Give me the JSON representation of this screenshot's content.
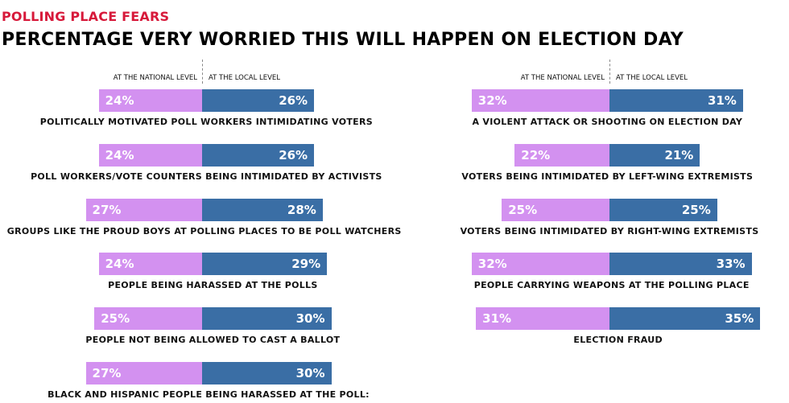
{
  "header": {
    "kicker": "POLLING PLACE FEARS",
    "title": "PERCENTAGE VERY WORRIED THIS WILL HAPPEN ON ELECTION DAY"
  },
  "chart_data": {
    "type": "bar",
    "orientation": "horizontal diverging",
    "colors": {
      "At the national level": "#d391f0",
      "At the local level": "#3a6ea5",
      "kicker": "#d7193a"
    },
    "panels": [
      {
        "header_national": "AT THE NATIONAL LEVEL",
        "header_local": "AT THE LOCAL LEVEL",
        "rows": [
          {
            "label": "POLITICALLY MOTIVATED POLL WORKERS INTIMIDATING VOTERS",
            "national": 24,
            "local": 26
          },
          {
            "label": "POLL WORKERS/VOTE COUNTERS BEING INTIMIDATED BY ACTIVISTS",
            "national": 24,
            "local": 26
          },
          {
            "label": "GROUPS LIKE THE PROUD BOYS AT POLLING PLACES TO BE POLL WATCHERS",
            "national": 27,
            "local": 28
          },
          {
            "label": "PEOPLE BEING HARASSED AT THE POLLS",
            "national": 24,
            "local": 29
          },
          {
            "label": "PEOPLE NOT BEING ALLOWED TO CAST A BALLOT",
            "national": 25,
            "local": 30
          },
          {
            "label": "BLACK AND HISPANIC PEOPLE BEING HARASSED AT THE POLL:",
            "national": 27,
            "local": 30
          }
        ]
      },
      {
        "header_national": "AT THE NATIONAL LEVEL",
        "header_local": "AT THE LOCAL LEVEL",
        "rows": [
          {
            "label": "A VIOLENT ATTACK OR SHOOTING ON ELECTION DAY",
            "national": 32,
            "local": 31
          },
          {
            "label": "VOTERS BEING INTIMIDATED BY LEFT-WING EXTREMISTS",
            "national": 22,
            "local": 21
          },
          {
            "label": "VOTERS BEING INTIMIDATED BY RIGHT-WING EXTREMISTS",
            "national": 25,
            "local": 25
          },
          {
            "label": "PEOPLE CARRYING WEAPONS AT THE POLLING PLACE",
            "national": 32,
            "local": 33
          },
          {
            "label": "ELECTION FRAUD",
            "national": 31,
            "local": 35
          }
        ]
      }
    ]
  }
}
